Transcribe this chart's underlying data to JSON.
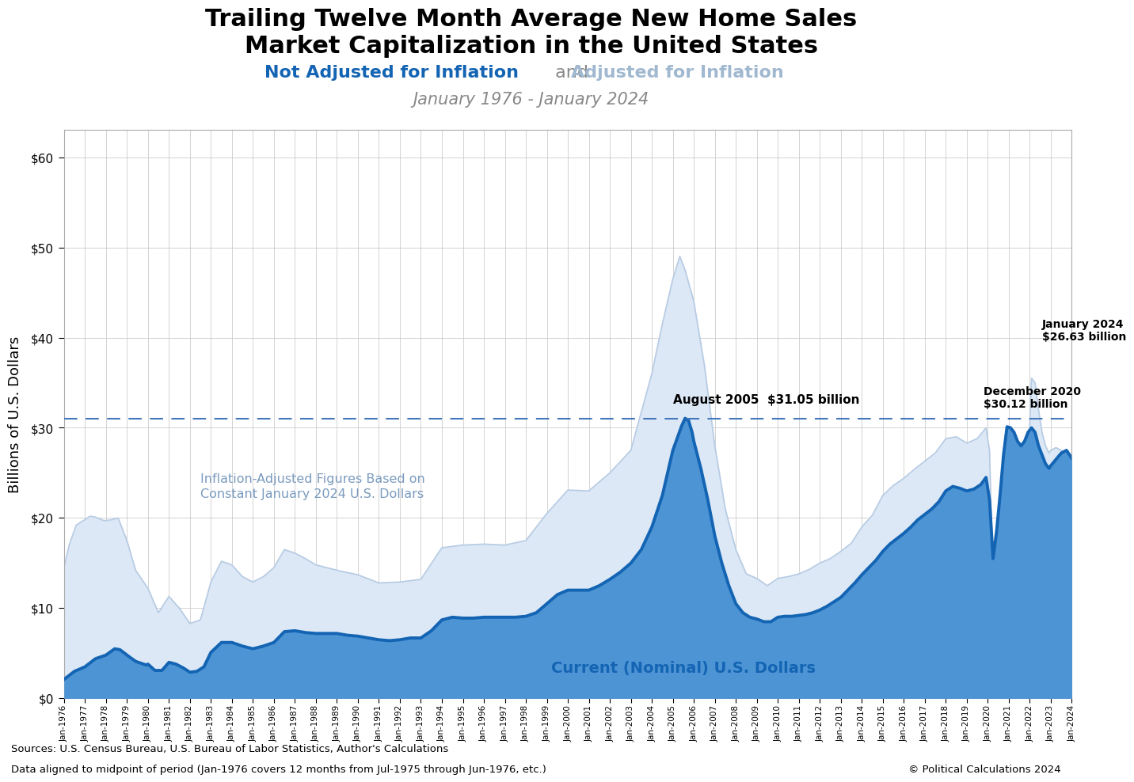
{
  "title_line1": "Trailing Twelve Month Average New Home Sales",
  "title_line2": "Market Capitalization in the United States",
  "subtitle1_nominal": "Not Adjusted for Inflation",
  "subtitle1_and": " and ",
  "subtitle1_adjusted": "Adjusted for Inflation",
  "subtitle2": "January 1976 - January 2024",
  "ylabel": "Billions of U.S. Dollars",
  "source_line1": "Sources: U.S. Census Bureau, U.S. Bureau of Labor Statistics, Author's Calculations",
  "source_line2": "Data aligned to midpoint of period (Jan-1976 covers 12 months from Jul-1975 through Jun-1976, etc.)",
  "copyright": "© Political Calculations 2024",
  "nominal_line_color": "#1464b4",
  "nominal_fill_color": "#4d94d4",
  "adjusted_line_color": "#b8cce4",
  "adjusted_fill_color": "#dce8f5",
  "dashed_line_color": "#4477bb",
  "dashed_line_value": 31.05,
  "annotation_aug2005": "August 2005  $31.05 billion",
  "annotation_dec2020": "December 2020\n$30.12 billion",
  "annotation_jan2024": "January 2024\n$26.63 billion",
  "label_nominal": "Current (Nominal) U.S. Dollars",
  "label_adjusted": "Inflation-Adjusted Figures Based on\nConstant January 2024 U.S. Dollars",
  "ylim_max": 63,
  "yticks": [
    0,
    10,
    20,
    30,
    40,
    50,
    60
  ],
  "background_color": "#ffffff",
  "grid_color": "#cccccc",
  "nominal_linewidth": 2.8,
  "adjusted_linewidth": 1.3,
  "nominal_color_text": "#1464b4",
  "adjusted_color_text": "#a0b8d0",
  "subtitle_and_color": "#888888",
  "subtitle2_color": "#888888",
  "title_fontsize": 22,
  "subtitle_fontsize": 16,
  "subtitle2_fontsize": 15
}
